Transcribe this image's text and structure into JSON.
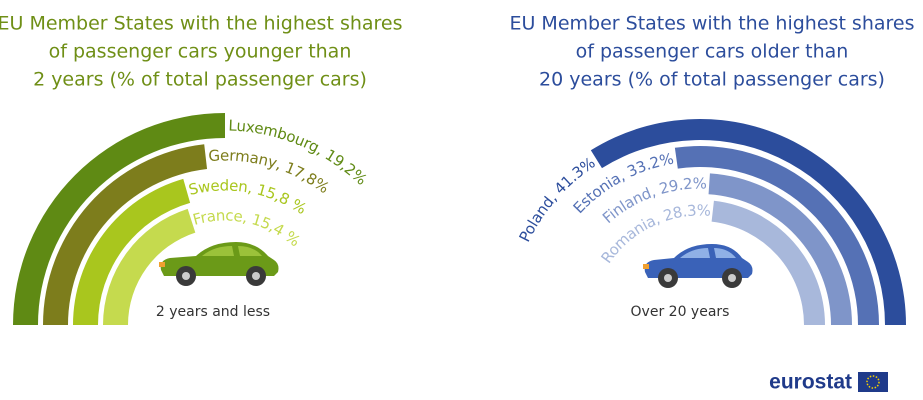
{
  "chart_data": [
    {
      "type": "radial_bar",
      "title": [
        "EU Member States with the highest shares",
        "of passenger cars younger than",
        "2 years (% of total passenger cars)"
      ],
      "values": [
        19.2,
        17.8,
        15.8,
        15.4
      ],
      "value_labels": [
        "Luxembourg, 19,2%",
        "Germany, 17,8%",
        "Sweden, 15,8 %",
        "France, 15,4 %"
      ],
      "colors": [
        "#5f8a14",
        "#7d7d1c",
        "#a9c61e",
        "#c5da4e"
      ],
      "annotation": "2 years and less",
      "title_color": "#6f8f16"
    },
    {
      "type": "radial_bar",
      "title": [
        "EU Member States with the highest shares",
        "of passenger cars older than",
        "20 years (% of total passenger cars)"
      ],
      "values": [
        41.3,
        33.2,
        29.2,
        28.3
      ],
      "value_labels": [
        "Poland, 41.3%",
        "Estonia, 33.2%",
        "Finland, 29.2%",
        "Romania, 28.3%"
      ],
      "colors": [
        "#2c4d9c",
        "#5571b5",
        "#7f95c9",
        "#a8b8db"
      ],
      "annotation": "Over 20 years",
      "title_color": "#2c4d9c"
    }
  ],
  "logo": "eurostat"
}
